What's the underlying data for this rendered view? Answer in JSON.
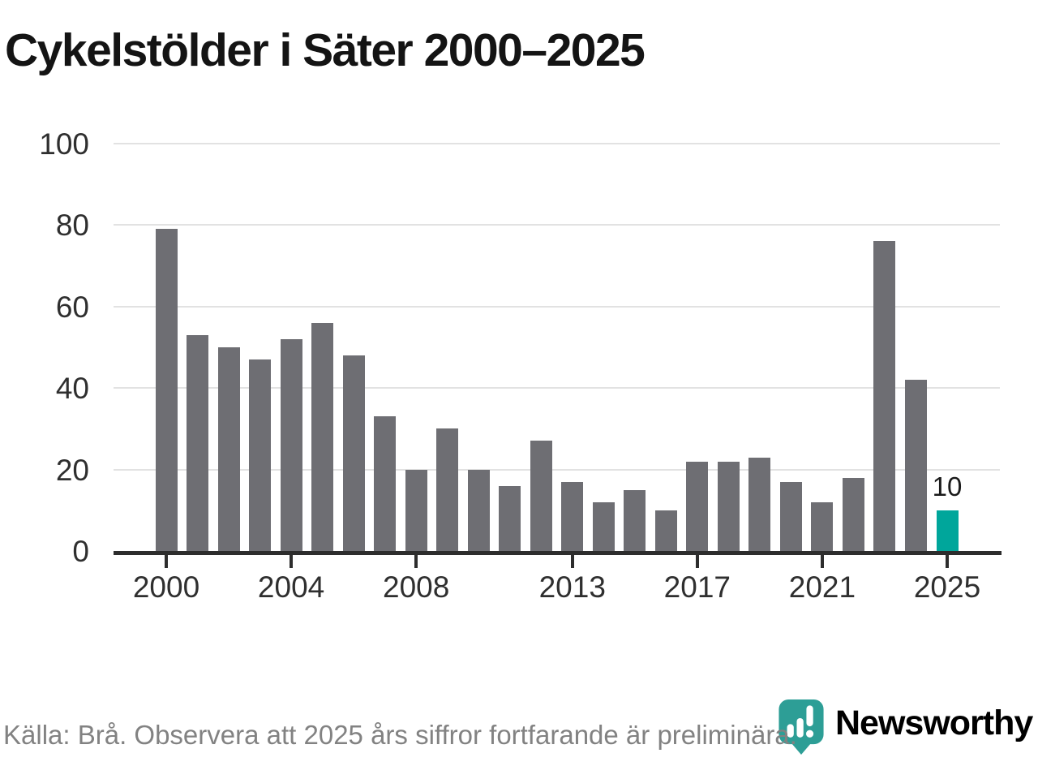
{
  "title": "Cykelstölder i Säter 2000–2025",
  "chart_data": {
    "type": "bar",
    "title": "Cykelstölder i Säter 2000–2025",
    "categories": [
      2000,
      2001,
      2002,
      2003,
      2004,
      2005,
      2006,
      2007,
      2008,
      2009,
      2010,
      2011,
      2012,
      2013,
      2014,
      2015,
      2016,
      2017,
      2018,
      2019,
      2020,
      2021,
      2022,
      2023,
      2024,
      2025
    ],
    "values": [
      79,
      53,
      50,
      47,
      52,
      56,
      48,
      33,
      20,
      30,
      20,
      16,
      27,
      17,
      12,
      15,
      10,
      22,
      22,
      23,
      17,
      12,
      18,
      76,
      42,
      10
    ],
    "xlabel": "",
    "ylabel": "",
    "ylim": [
      0,
      100
    ],
    "yticks": [
      0,
      20,
      40,
      60,
      80,
      100
    ],
    "xtick_years": [
      2000,
      2004,
      2008,
      2013,
      2017,
      2021,
      2025
    ],
    "grid": true,
    "legend": "none",
    "highlight": {
      "year": 2025,
      "value": 10,
      "label": "10"
    },
    "colors": {
      "bar": "#6e6e73",
      "highlight": "#00a69b",
      "grid": "#e2e2e2",
      "axis": "#2d2d2d",
      "tick_text": "#2f2f2f"
    }
  },
  "footer": {
    "source_note": "Källa: Brå. Observera att 2025 års siffror fortfarande är preliminära."
  },
  "logo": {
    "brand": "Newsworthy",
    "icon": "newsworthy-pin-barchart-icon",
    "color": "#2d9e96"
  }
}
